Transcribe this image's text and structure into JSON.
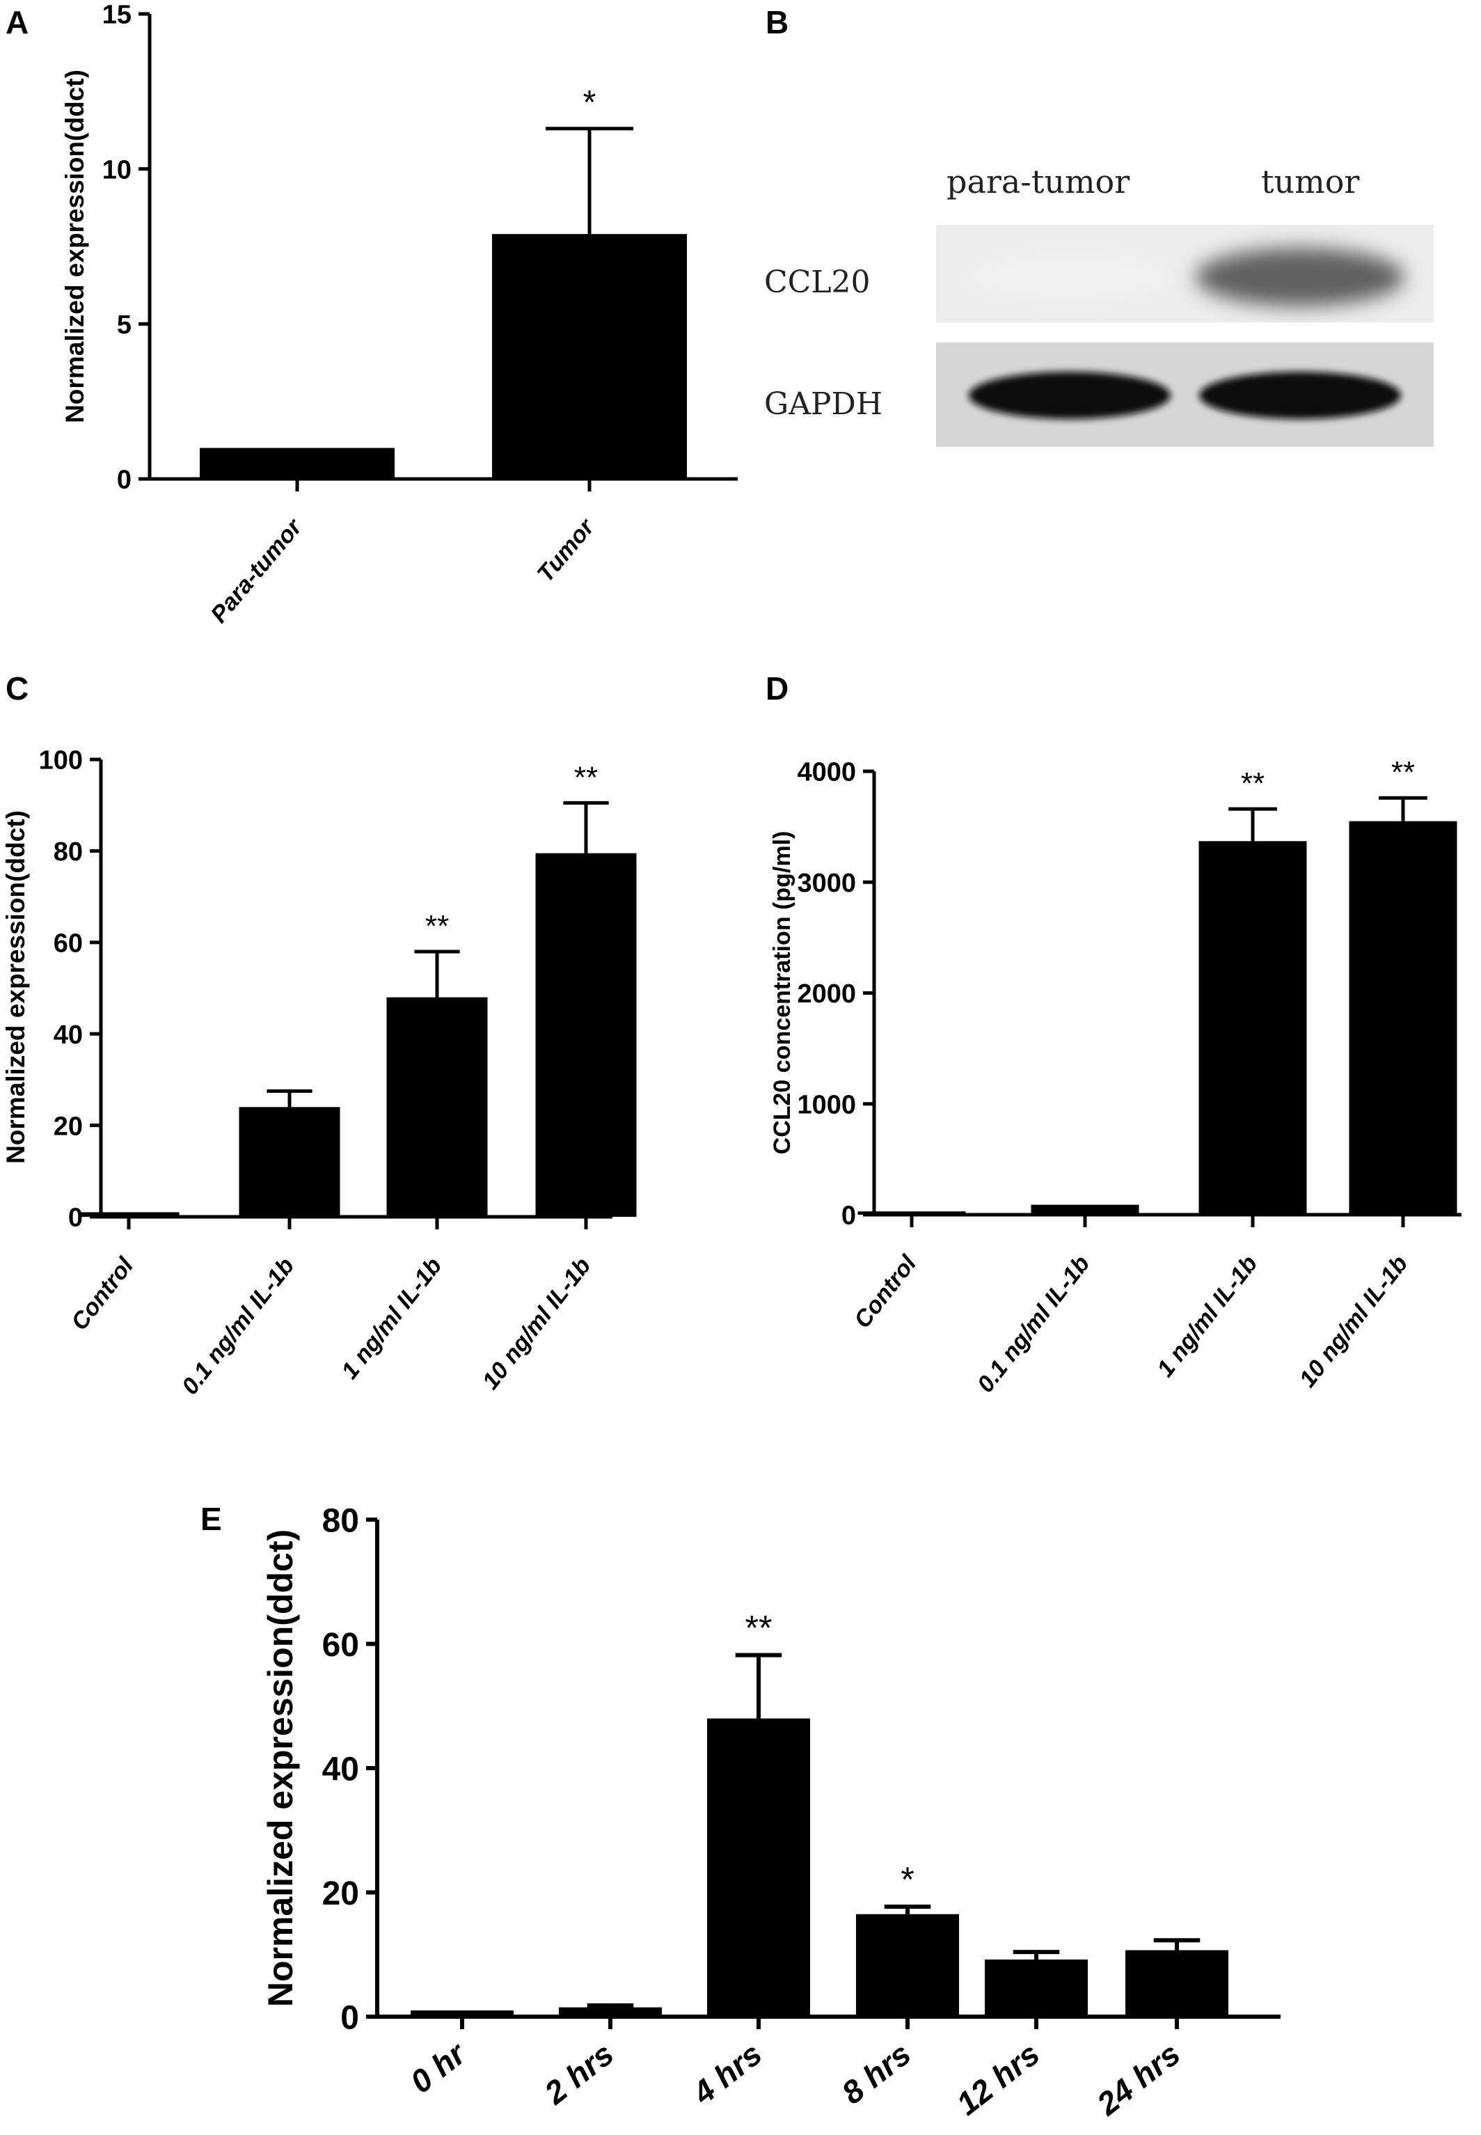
{
  "panel_letters": {
    "a": "A",
    "b": "B",
    "c": "C",
    "d": "D",
    "e": "E"
  },
  "chart_data": [
    {
      "panel": "A",
      "type": "bar",
      "categories": [
        "Para-tumor",
        "Tumor"
      ],
      "values": [
        1,
        7.9
      ],
      "errors": [
        0,
        3.4
      ],
      "significance": [
        "",
        "*"
      ],
      "ylabel": "Normalized expression(ddct)",
      "ylim": [
        0,
        15
      ],
      "yticks": [
        0,
        5,
        10,
        15
      ],
      "grid": false
    },
    {
      "panel": "C",
      "type": "bar",
      "categories": [
        "Control",
        "0.1 ng/ml IL-1b",
        "1 ng/ml IL-1b",
        "10 ng/ml IL-1b"
      ],
      "values": [
        1,
        24,
        48,
        79.5
      ],
      "errors": [
        0,
        3.5,
        10,
        11
      ],
      "significance": [
        "",
        "",
        "**",
        "**"
      ],
      "ylabel": "Normalized expression(ddct)",
      "ylim": [
        0,
        100
      ],
      "yticks": [
        0,
        20,
        40,
        60,
        80,
        100
      ],
      "grid": false
    },
    {
      "panel": "D",
      "type": "bar",
      "categories": [
        "Control",
        "0.1 ng/ml IL-1b",
        "1 ng/ml IL-1b",
        "10 ng/ml IL-1b"
      ],
      "values": [
        30,
        90,
        3370,
        3550
      ],
      "errors": [
        0,
        0,
        290,
        210
      ],
      "significance": [
        "",
        "",
        "**",
        "**"
      ],
      "ylabel": "CCL20 concentration (pg/ml)",
      "ylim": [
        0,
        4000
      ],
      "yticks": [
        0,
        1000,
        2000,
        3000,
        4000
      ],
      "grid": false
    },
    {
      "panel": "E",
      "type": "bar",
      "categories": [
        "0 hr",
        "2 hrs",
        "4 hrs",
        "8 hrs",
        "12 hrs",
        "24 hrs"
      ],
      "values": [
        1,
        1.5,
        48,
        16.5,
        9.2,
        10.7
      ],
      "errors": [
        0,
        0.3,
        10.2,
        1.2,
        1.2,
        1.6
      ],
      "significance": [
        "",
        "",
        "**",
        "*",
        "",
        ""
      ],
      "ylabel": "Normalized expression(ddct)",
      "ylim": [
        0,
        80
      ],
      "yticks": [
        0,
        20,
        40,
        60,
        80
      ],
      "grid": false
    }
  ],
  "blot": {
    "columns": [
      "para-tumor",
      "tumor"
    ],
    "rows": [
      "CCL20",
      "GAPDH"
    ],
    "band_intensity": {
      "CCL20": [
        0.06,
        0.62
      ],
      "GAPDH": [
        0.95,
        0.95
      ]
    }
  }
}
